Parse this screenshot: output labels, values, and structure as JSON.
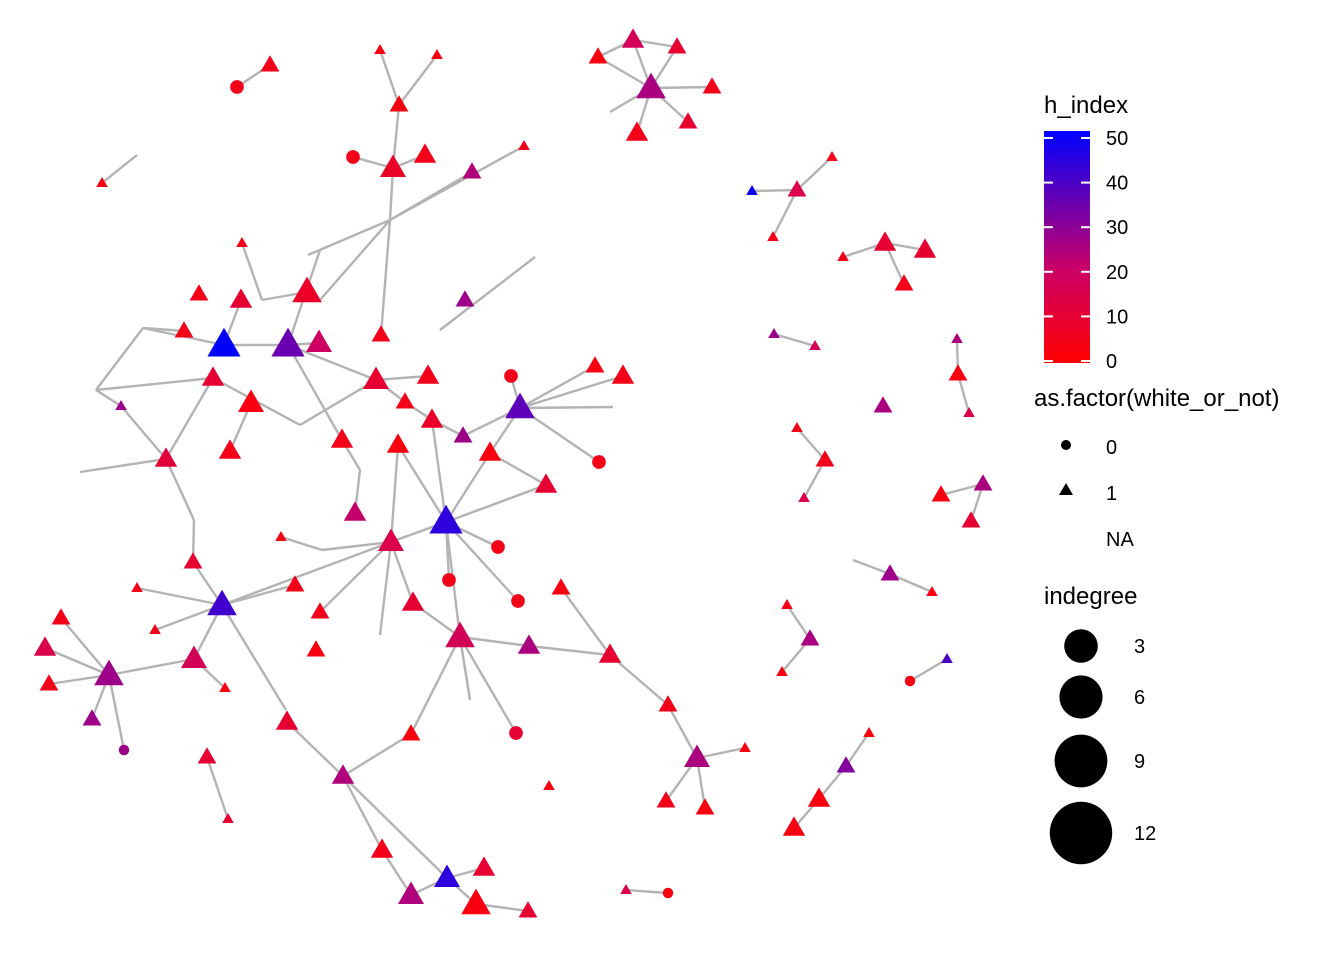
{
  "colors": {
    "low": "#ff0000",
    "mid": "#cc0066",
    "high": "#0000ff",
    "edge": "#b3b3b3"
  },
  "legend": {
    "color": {
      "title": "h_index",
      "min": 0,
      "max": 52,
      "ticks": [
        {
          "label": "50",
          "value": 50
        },
        {
          "label": "40",
          "value": 40
        },
        {
          "label": "30",
          "value": 30
        },
        {
          "label": "20",
          "value": 20
        },
        {
          "label": "10",
          "value": 10
        },
        {
          "label": "0",
          "value": 0
        }
      ]
    },
    "shape": {
      "title": "as.factor(white_or_not)",
      "items": [
        {
          "label": "0",
          "shape": "circle"
        },
        {
          "label": "1",
          "shape": "triangle"
        },
        {
          "label": "NA",
          "shape": "none"
        }
      ]
    },
    "size": {
      "title": "indegree",
      "items": [
        {
          "label": "3",
          "value": 3
        },
        {
          "label": "6",
          "value": 6
        },
        {
          "label": "9",
          "value": 9
        },
        {
          "label": "12",
          "value": 12
        }
      ]
    }
  },
  "nodes": [
    [
      237,
      87,
      2,
      "c",
      5
    ],
    [
      270,
      65,
      3,
      "t",
      5
    ],
    [
      380,
      50,
      1,
      "t",
      3
    ],
    [
      437,
      55,
      1,
      "t",
      3
    ],
    [
      399,
      105,
      3,
      "t",
      3
    ],
    [
      353,
      157,
      2,
      "c",
      5
    ],
    [
      393,
      168,
      5,
      "t",
      8
    ],
    [
      425,
      155,
      4,
      "t",
      5
    ],
    [
      472,
      172,
      3,
      "t",
      25
    ],
    [
      524,
      146,
      1,
      "t",
      5
    ],
    [
      102,
      183,
      1,
      "t",
      5
    ],
    [
      598,
      57,
      3,
      "t",
      3
    ],
    [
      633,
      40,
      4,
      "t",
      18
    ],
    [
      677,
      47,
      3,
      "t",
      10
    ],
    [
      651,
      88,
      6,
      "t",
      26
    ],
    [
      712,
      87,
      3,
      "t",
      5
    ],
    [
      688,
      122,
      3,
      "t",
      10
    ],
    [
      637,
      133,
      4,
      "t",
      5
    ],
    [
      752,
      191,
      1,
      "t",
      50
    ],
    [
      797,
      190,
      3,
      "t",
      15
    ],
    [
      832,
      157,
      1,
      "t",
      5
    ],
    [
      773,
      237,
      1,
      "t",
      5
    ],
    [
      843,
      257,
      1,
      "t",
      5
    ],
    [
      885,
      243,
      4,
      "t",
      10
    ],
    [
      925,
      250,
      4,
      "t",
      10
    ],
    [
      904,
      284,
      3,
      "t",
      5
    ],
    [
      774,
      334,
      1,
      "t",
      28
    ],
    [
      815,
      346,
      1,
      "t",
      18
    ],
    [
      957,
      339,
      1,
      "t",
      26
    ],
    [
      958,
      374,
      3,
      "t",
      3
    ],
    [
      969,
      413,
      1,
      "t",
      15
    ],
    [
      883,
      406,
      3,
      "t",
      26
    ],
    [
      797,
      428,
      1,
      "t",
      5
    ],
    [
      825,
      460,
      3,
      "t",
      5
    ],
    [
      804,
      498,
      1,
      "t",
      15
    ],
    [
      941,
      495,
      3,
      "t",
      3
    ],
    [
      983,
      484,
      3,
      "t",
      26
    ],
    [
      971,
      521,
      3,
      "t",
      10
    ],
    [
      242,
      243,
      1,
      "t",
      5
    ],
    [
      199,
      294,
      3,
      "t",
      5
    ],
    [
      241,
      300,
      4,
      "t",
      10
    ],
    [
      307,
      292,
      6,
      "t",
      8
    ],
    [
      184,
      331,
      3,
      "t",
      5
    ],
    [
      224,
      345,
      7,
      "t",
      52
    ],
    [
      288,
      345,
      7,
      "t",
      36
    ],
    [
      319,
      343,
      5,
      "t",
      20
    ],
    [
      381,
      335,
      3,
      "t",
      5
    ],
    [
      465,
      300,
      3,
      "t",
      28
    ],
    [
      121,
      406,
      1,
      "t",
      28
    ],
    [
      213,
      378,
      4,
      "t",
      10
    ],
    [
      251,
      403,
      5,
      "t",
      3
    ],
    [
      376,
      380,
      5,
      "t",
      10
    ],
    [
      428,
      376,
      4,
      "t",
      5
    ],
    [
      511,
      376,
      2,
      "c",
      5
    ],
    [
      595,
      366,
      3,
      "t",
      3
    ],
    [
      623,
      376,
      4,
      "t",
      5
    ],
    [
      520,
      408,
      6,
      "t",
      38
    ],
    [
      405,
      402,
      3,
      "t",
      5
    ],
    [
      432,
      420,
      4,
      "t",
      8
    ],
    [
      463,
      436,
      3,
      "t",
      28
    ],
    [
      398,
      445,
      4,
      "t",
      3
    ],
    [
      342,
      440,
      4,
      "t",
      5
    ],
    [
      166,
      459,
      4,
      "t",
      12
    ],
    [
      230,
      451,
      4,
      "t",
      5
    ],
    [
      490,
      453,
      4,
      "t",
      3
    ],
    [
      599,
      462,
      2,
      "c",
      5
    ],
    [
      546,
      485,
      4,
      "t",
      10
    ],
    [
      355,
      513,
      4,
      "t",
      22
    ],
    [
      446,
      522,
      7,
      "t",
      45
    ],
    [
      498,
      547,
      2,
      "c",
      5
    ],
    [
      449,
      580,
      2,
      "c",
      5
    ],
    [
      518,
      601,
      2,
      "c",
      5
    ],
    [
      281,
      537,
      1,
      "t",
      5
    ],
    [
      391,
      542,
      5,
      "t",
      15
    ],
    [
      193,
      562,
      3,
      "t",
      10
    ],
    [
      137,
      588,
      1,
      "t",
      5
    ],
    [
      222,
      605,
      6,
      "t",
      42
    ],
    [
      295,
      585,
      3,
      "t",
      5
    ],
    [
      320,
      612,
      3,
      "t",
      5
    ],
    [
      155,
      630,
      1,
      "t",
      5
    ],
    [
      316,
      650,
      3,
      "t",
      3
    ],
    [
      561,
      588,
      3,
      "t",
      3
    ],
    [
      413,
      603,
      4,
      "t",
      10
    ],
    [
      460,
      637,
      6,
      "t",
      18
    ],
    [
      529,
      646,
      4,
      "t",
      26
    ],
    [
      610,
      655,
      4,
      "t",
      10
    ],
    [
      61,
      618,
      3,
      "t",
      5
    ],
    [
      45,
      648,
      4,
      "t",
      15
    ],
    [
      109,
      675,
      6,
      "t",
      28
    ],
    [
      49,
      684,
      3,
      "t",
      5
    ],
    [
      92,
      719,
      3,
      "t",
      28
    ],
    [
      124,
      750,
      1,
      "c",
      28
    ],
    [
      194,
      659,
      5,
      "t",
      18
    ],
    [
      225,
      688,
      1,
      "t",
      3
    ],
    [
      287,
      722,
      4,
      "t",
      10
    ],
    [
      207,
      757,
      3,
      "t",
      10
    ],
    [
      228,
      819,
      1,
      "t",
      10
    ],
    [
      411,
      734,
      3,
      "t",
      3
    ],
    [
      516,
      733,
      2,
      "c",
      10
    ],
    [
      343,
      776,
      4,
      "t",
      25
    ],
    [
      549,
      786,
      1,
      "t",
      3
    ],
    [
      668,
      705,
      3,
      "t",
      5
    ],
    [
      697,
      758,
      5,
      "t",
      26
    ],
    [
      745,
      748,
      1,
      "t",
      3
    ],
    [
      666,
      801,
      3,
      "t",
      5
    ],
    [
      705,
      808,
      3,
      "t",
      3
    ],
    [
      787,
      605,
      1,
      "t",
      5
    ],
    [
      810,
      639,
      3,
      "t",
      26
    ],
    [
      782,
      672,
      1,
      "t",
      3
    ],
    [
      890,
      574,
      3,
      "t",
      28
    ],
    [
      932,
      592,
      1,
      "t",
      3
    ],
    [
      910,
      681,
      1,
      "c",
      3
    ],
    [
      947,
      659,
      1,
      "t",
      40
    ],
    [
      869,
      733,
      1,
      "t",
      3
    ],
    [
      846,
      766,
      3,
      "t",
      32
    ],
    [
      819,
      799,
      4,
      "t",
      3
    ],
    [
      794,
      828,
      4,
      "t",
      3
    ],
    [
      382,
      850,
      4,
      "t",
      5
    ],
    [
      447,
      878,
      5,
      "t",
      45
    ],
    [
      484,
      868,
      4,
      "t",
      10
    ],
    [
      411,
      895,
      5,
      "t",
      25
    ],
    [
      476,
      904,
      6,
      "t",
      3
    ],
    [
      528,
      911,
      3,
      "t",
      10
    ],
    [
      626,
      890,
      1,
      "t",
      15
    ],
    [
      668,
      893,
      1,
      "c",
      3
    ]
  ],
  "edges": [
    [
      237,
      87,
      270,
      65
    ],
    [
      380,
      50,
      399,
      105
    ],
    [
      437,
      55,
      399,
      105
    ],
    [
      399,
      105,
      393,
      168
    ],
    [
      353,
      157,
      393,
      168
    ],
    [
      393,
      168,
      425,
      155
    ],
    [
      393,
      168,
      390,
      220
    ],
    [
      390,
      220,
      472,
      172
    ],
    [
      390,
      220,
      524,
      146
    ],
    [
      102,
      183,
      137,
      155
    ],
    [
      598,
      57,
      633,
      40
    ],
    [
      633,
      40,
      677,
      47
    ],
    [
      633,
      40,
      651,
      88
    ],
    [
      677,
      47,
      651,
      88
    ],
    [
      651,
      88,
      712,
      87
    ],
    [
      651,
      88,
      688,
      122
    ],
    [
      651,
      88,
      637,
      133
    ],
    [
      598,
      57,
      651,
      88
    ],
    [
      610,
      112,
      651,
      88
    ],
    [
      752,
      191,
      797,
      190
    ],
    [
      797,
      190,
      832,
      157
    ],
    [
      797,
      190,
      773,
      237
    ],
    [
      843,
      257,
      885,
      243
    ],
    [
      885,
      243,
      925,
      250
    ],
    [
      885,
      243,
      904,
      284
    ],
    [
      774,
      334,
      815,
      346
    ],
    [
      957,
      339,
      958,
      374
    ],
    [
      958,
      374,
      969,
      413
    ],
    [
      797,
      428,
      825,
      460
    ],
    [
      825,
      460,
      804,
      498
    ],
    [
      941,
      495,
      983,
      484
    ],
    [
      983,
      484,
      971,
      521
    ],
    [
      390,
      220,
      320,
      300
    ],
    [
      390,
      220,
      381,
      335
    ],
    [
      390,
      220,
      308,
      255
    ],
    [
      535,
      257,
      440,
      330
    ],
    [
      320,
      250,
      288,
      345
    ],
    [
      224,
      345,
      143,
      328
    ],
    [
      143,
      328,
      184,
      331
    ],
    [
      143,
      328,
      96,
      390
    ],
    [
      96,
      390,
      121,
      406
    ],
    [
      96,
      390,
      213,
      378
    ],
    [
      121,
      406,
      166,
      459
    ],
    [
      224,
      345,
      288,
      345
    ],
    [
      224,
      345,
      241,
      300
    ],
    [
      288,
      345,
      319,
      343
    ],
    [
      288,
      345,
      376,
      380
    ],
    [
      288,
      345,
      342,
      440
    ],
    [
      242,
      243,
      262,
      300
    ],
    [
      262,
      300,
      307,
      292
    ],
    [
      376,
      380,
      428,
      376
    ],
    [
      376,
      380,
      405,
      402
    ],
    [
      405,
      402,
      432,
      420
    ],
    [
      432,
      420,
      463,
      436
    ],
    [
      463,
      436,
      520,
      408
    ],
    [
      520,
      408,
      595,
      366
    ],
    [
      520,
      408,
      623,
      376
    ],
    [
      520,
      408,
      613,
      407
    ],
    [
      520,
      408,
      511,
      376
    ],
    [
      520,
      408,
      599,
      462
    ],
    [
      520,
      408,
      490,
      453
    ],
    [
      490,
      453,
      446,
      522
    ],
    [
      432,
      420,
      446,
      522
    ],
    [
      398,
      445,
      446,
      522
    ],
    [
      398,
      445,
      391,
      542
    ],
    [
      342,
      440,
      360,
      470
    ],
    [
      360,
      470,
      355,
      513
    ],
    [
      80,
      472,
      166,
      459
    ],
    [
      166,
      459,
      213,
      378
    ],
    [
      166,
      459,
      194,
      520
    ],
    [
      194,
      520,
      193,
      562
    ],
    [
      230,
      451,
      251,
      403
    ],
    [
      213,
      378,
      300,
      425
    ],
    [
      300,
      425,
      376,
      380
    ],
    [
      446,
      522,
      498,
      547
    ],
    [
      446,
      522,
      449,
      580
    ],
    [
      446,
      522,
      518,
      601
    ],
    [
      446,
      522,
      460,
      637
    ],
    [
      446,
      522,
      391,
      542
    ],
    [
      391,
      542,
      413,
      603
    ],
    [
      391,
      542,
      322,
      550
    ],
    [
      322,
      550,
      281,
      537
    ],
    [
      446,
      522,
      546,
      485
    ],
    [
      546,
      485,
      490,
      453
    ],
    [
      460,
      637,
      529,
      646
    ],
    [
      529,
      646,
      610,
      655
    ],
    [
      460,
      637,
      413,
      603
    ],
    [
      460,
      637,
      470,
      700
    ],
    [
      460,
      637,
      411,
      734
    ],
    [
      222,
      605,
      137,
      588
    ],
    [
      222,
      605,
      193,
      562
    ],
    [
      222,
      605,
      155,
      630
    ],
    [
      222,
      605,
      295,
      585
    ],
    [
      222,
      605,
      391,
      542
    ],
    [
      222,
      605,
      194,
      659
    ],
    [
      222,
      605,
      286,
      710
    ],
    [
      391,
      542,
      320,
      612
    ],
    [
      391,
      542,
      380,
      635
    ],
    [
      561,
      588,
      610,
      655
    ],
    [
      610,
      655,
      668,
      705
    ],
    [
      668,
      705,
      697,
      758
    ],
    [
      109,
      675,
      61,
      618
    ],
    [
      109,
      675,
      45,
      648
    ],
    [
      109,
      675,
      49,
      684
    ],
    [
      109,
      675,
      92,
      719
    ],
    [
      109,
      675,
      124,
      750
    ],
    [
      109,
      675,
      194,
      659
    ],
    [
      194,
      659,
      225,
      688
    ],
    [
      207,
      757,
      228,
      819
    ],
    [
      287,
      722,
      343,
      776
    ],
    [
      343,
      776,
      411,
      734
    ],
    [
      343,
      776,
      382,
      850
    ],
    [
      343,
      776,
      447,
      878
    ],
    [
      516,
      733,
      460,
      637
    ],
    [
      697,
      758,
      745,
      748
    ],
    [
      697,
      758,
      666,
      801
    ],
    [
      697,
      758,
      705,
      808
    ],
    [
      787,
      605,
      810,
      639
    ],
    [
      810,
      639,
      782,
      672
    ],
    [
      853,
      560,
      890,
      574
    ],
    [
      890,
      574,
      932,
      592
    ],
    [
      910,
      681,
      947,
      659
    ],
    [
      869,
      733,
      846,
      766
    ],
    [
      846,
      766,
      819,
      799
    ],
    [
      819,
      799,
      794,
      828
    ],
    [
      382,
      850,
      411,
      895
    ],
    [
      447,
      878,
      484,
      868
    ],
    [
      447,
      878,
      411,
      895
    ],
    [
      447,
      878,
      476,
      904
    ],
    [
      476,
      904,
      528,
      911
    ],
    [
      626,
      890,
      668,
      893
    ]
  ]
}
